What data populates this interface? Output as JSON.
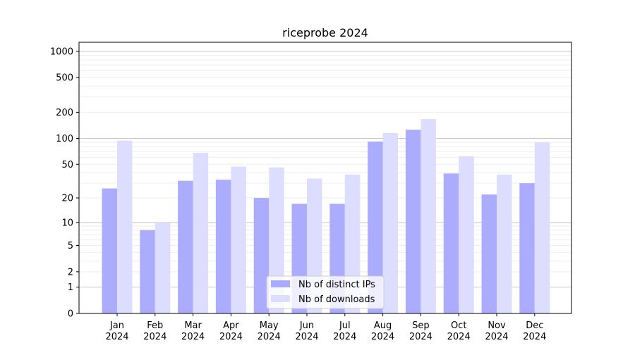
{
  "chart_data": {
    "type": "bar",
    "title": "riceprobe 2024",
    "xlabel": "",
    "ylabel": "",
    "yscale": "log10(1+y)",
    "ylim": [
      0,
      1200
    ],
    "yticks": [
      0,
      1,
      2,
      5,
      10,
      20,
      50,
      100,
      200,
      500,
      1000
    ],
    "grid": true,
    "legend_position": "lower-center",
    "categories": [
      [
        "Jan",
        "2024"
      ],
      [
        "Feb",
        "2024"
      ],
      [
        "Mar",
        "2024"
      ],
      [
        "Apr",
        "2024"
      ],
      [
        "May",
        "2024"
      ],
      [
        "Jun",
        "2024"
      ],
      [
        "Jul",
        "2024"
      ],
      [
        "Aug",
        "2024"
      ],
      [
        "Sep",
        "2024"
      ],
      [
        "Oct",
        "2024"
      ],
      [
        "Nov",
        "2024"
      ],
      [
        "Dec",
        "2024"
      ]
    ],
    "series": [
      {
        "name": "Nb of distinct IPs",
        "color": "#aaaaff",
        "values": [
          26,
          8,
          32,
          33,
          20,
          17,
          17,
          92,
          126,
          39,
          22,
          30
        ]
      },
      {
        "name": "Nb of downloads",
        "color": "#ddddff",
        "values": [
          94,
          10,
          68,
          47,
          46,
          34,
          38,
          115,
          167,
          62,
          38,
          90
        ]
      }
    ]
  }
}
